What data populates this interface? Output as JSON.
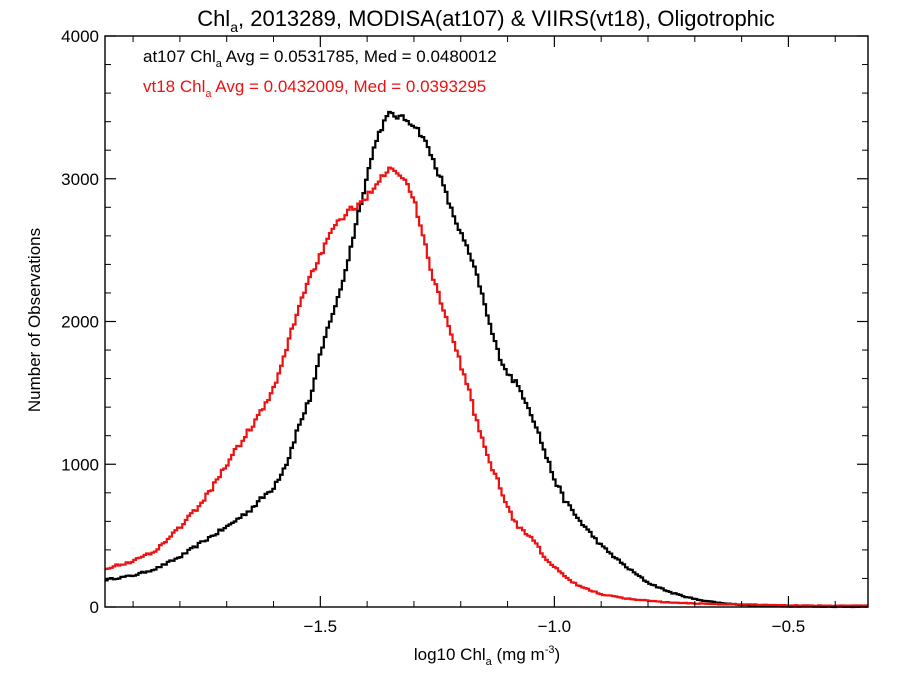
{
  "chart_data": {
    "type": "line",
    "step": true,
    "title": {
      "pre": "Chl",
      "sub": "a",
      "post": ", 2013289, MODISA(at107) & VIIRS(vt18), Oligotrophic"
    },
    "xlabel": {
      "pre": "log10 Chl",
      "sub": "a",
      "post": " (mg m",
      "sup": "-3",
      "tail": ")"
    },
    "ylabel": "Number of Observations",
    "xlim": [
      -1.96,
      -0.33
    ],
    "ylim": [
      0,
      4000
    ],
    "xticks": [
      {
        "value": -1.5,
        "label": "−1.5"
      },
      {
        "value": -1.0,
        "label": "−1.0"
      },
      {
        "value": -0.5,
        "label": "−0.5"
      }
    ],
    "yticks": [
      {
        "value": 0,
        "label": "0"
      },
      {
        "value": 1000,
        "label": "1000"
      },
      {
        "value": 2000,
        "label": "2000"
      },
      {
        "value": 3000,
        "label": "3000"
      },
      {
        "value": 4000,
        "label": "4000"
      }
    ],
    "x_minor_step": 0.1,
    "y_minor_step": 200,
    "grid": false,
    "annotations": [
      {
        "color": "#000000",
        "pre": "at107 Chl",
        "sub": "a",
        "post": " Avg = 0.0531785, Med = 0.0480012"
      },
      {
        "color": "#ee1111",
        "pre": "vt18 Chl",
        "sub": "a",
        "post": " Avg = 0.0432009, Med = 0.0393295"
      }
    ],
    "series": [
      {
        "color": "#000000",
        "x": [
          -1.96,
          -1.9,
          -1.85,
          -1.8,
          -1.75,
          -1.7,
          -1.65,
          -1.6,
          -1.57,
          -1.55,
          -1.52,
          -1.5,
          -1.48,
          -1.46,
          -1.44,
          -1.42,
          -1.4,
          -1.38,
          -1.36,
          -1.35,
          -1.34,
          -1.32,
          -1.3,
          -1.28,
          -1.26,
          -1.24,
          -1.22,
          -1.2,
          -1.18,
          -1.16,
          -1.14,
          -1.12,
          -1.1,
          -1.08,
          -1.06,
          -1.04,
          -1.02,
          -1.0,
          -0.98,
          -0.95,
          -0.9,
          -0.85,
          -0.8,
          -0.75,
          -0.7,
          -0.65,
          -0.6,
          -0.55,
          -0.5,
          -0.45,
          -0.4,
          -0.33
        ],
        "y": [
          190,
          220,
          270,
          350,
          460,
          560,
          680,
          840,
          1020,
          1230,
          1480,
          1760,
          2000,
          2180,
          2440,
          2740,
          3020,
          3280,
          3420,
          3460,
          3440,
          3420,
          3380,
          3290,
          3140,
          2980,
          2780,
          2620,
          2460,
          2260,
          2000,
          1780,
          1640,
          1560,
          1440,
          1280,
          1080,
          900,
          760,
          620,
          430,
          290,
          170,
          100,
          55,
          30,
          15,
          8,
          5,
          3,
          2,
          2
        ]
      },
      {
        "color": "#ee1111",
        "x": [
          -1.96,
          -1.9,
          -1.85,
          -1.8,
          -1.75,
          -1.7,
          -1.65,
          -1.62,
          -1.6,
          -1.58,
          -1.56,
          -1.54,
          -1.52,
          -1.5,
          -1.48,
          -1.46,
          -1.44,
          -1.42,
          -1.4,
          -1.38,
          -1.36,
          -1.35,
          -1.34,
          -1.32,
          -1.3,
          -1.28,
          -1.26,
          -1.24,
          -1.22,
          -1.2,
          -1.18,
          -1.16,
          -1.14,
          -1.12,
          -1.1,
          -1.08,
          -1.06,
          -1.04,
          -1.02,
          -1.0,
          -0.98,
          -0.95,
          -0.9,
          -0.85,
          -0.8,
          -0.75,
          -0.7,
          -0.65,
          -0.6,
          -0.55,
          -0.5,
          -0.45,
          -0.4,
          -0.33
        ],
        "y": [
          270,
          320,
          400,
          560,
          740,
          1000,
          1250,
          1400,
          1520,
          1720,
          1950,
          2160,
          2330,
          2460,
          2600,
          2700,
          2780,
          2800,
          2880,
          2970,
          3050,
          3100,
          3060,
          3000,
          2850,
          2600,
          2320,
          2120,
          1900,
          1700,
          1490,
          1220,
          1040,
          880,
          700,
          570,
          520,
          450,
          340,
          280,
          220,
          150,
          90,
          60,
          45,
          30,
          25,
          20,
          18,
          15,
          12,
          10,
          10,
          10
        ]
      }
    ]
  }
}
